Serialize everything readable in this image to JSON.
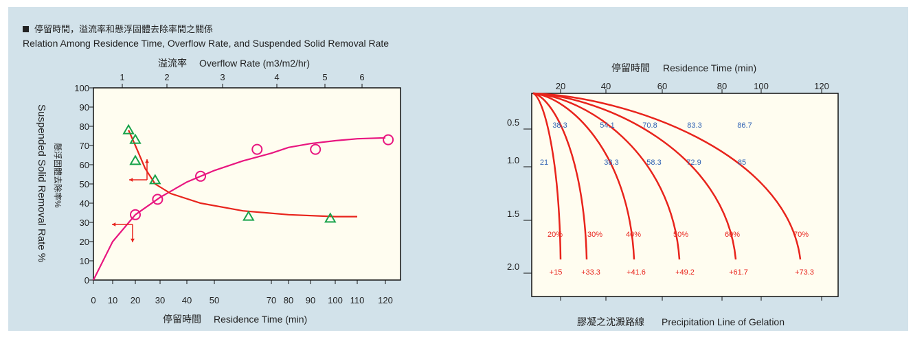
{
  "header": {
    "title_cn": "停留時間，溢流率和懸浮固體去除率間之關係",
    "title_en": "Relation Among Residence Time, Overflow Rate, and Suspended Solid Removal Rate"
  },
  "colors": {
    "background": "#d2e2ea",
    "plot_bg": "#fffdf0",
    "removal_curve": "#e8157f",
    "overflow_curve": "#e8241c",
    "triangle_marker": "#17a34a",
    "circle_marker": "#e8157f",
    "arrow": "#e8241c",
    "gel_curve": "#e8241c",
    "blue_label": "#3264b4",
    "red_label": "#e8241c"
  },
  "chart_data": [
    {
      "type": "scatter",
      "x_top_label_cn": "溢流率",
      "x_top_label_en": "Overflow Rate (m3/m2/hr)",
      "x_top_ticks": [
        "1",
        "2",
        "3",
        "4",
        "5",
        "6"
      ],
      "x_bottom_label_cn": "停留時間",
      "x_bottom_label_en": "Residence Time (min)",
      "x_bottom_ticks": [
        "0",
        "10",
        "20",
        "30",
        "40",
        "50",
        "70",
        "80",
        "90",
        "100",
        "110",
        "120"
      ],
      "y_label_cn": "懸浮固體去除率%",
      "y_label_en": "Suspended Solid Removal Rate %",
      "y_ticks": [
        "0",
        "10",
        "20",
        "30",
        "40",
        "50",
        "60",
        "70",
        "80",
        "90",
        "100"
      ],
      "ylim": [
        0,
        100
      ],
      "series": [
        {
          "marker": "circle",
          "points": [
            [
              20,
              34
            ],
            [
              29,
              42
            ],
            [
              45,
              54
            ],
            [
              65,
              68
            ],
            [
              92,
              68
            ],
            [
              121,
              73
            ]
          ]
        },
        {
          "marker": "triangle",
          "points": [
            [
              17,
              78
            ],
            [
              20,
              73
            ],
            [
              20,
              62
            ],
            [
              28,
              52
            ],
            [
              62,
              33
            ],
            [
              98,
              32
            ]
          ]
        }
      ]
    },
    {
      "type": "line",
      "x_label_cn": "停留時間",
      "x_label_en": "Residence Time (min)",
      "x_ticks": [
        "20",
        "40",
        "60",
        "80",
        "100",
        "120"
      ],
      "y_ticks": [
        "0.5",
        "1.0",
        "1.5",
        "2.0"
      ],
      "bottom_label_cn": "膠凝之沈澱路線",
      "bottom_label_en": "Precipitation Line of Gelation",
      "row_05_labels": [
        "38.3",
        "54.1",
        "70.8",
        "83.3",
        "86.7"
      ],
      "row_10_labels": [
        "21",
        "38.3",
        "58.3",
        "72.9",
        "85"
      ],
      "percent_labels": [
        "20%",
        "30%",
        "40%",
        "50%",
        "60%",
        "70%"
      ],
      "end_labels": [
        "+15",
        "+33.3",
        "+41.6",
        "+49.2",
        "+61.7",
        "+73.3"
      ]
    }
  ]
}
